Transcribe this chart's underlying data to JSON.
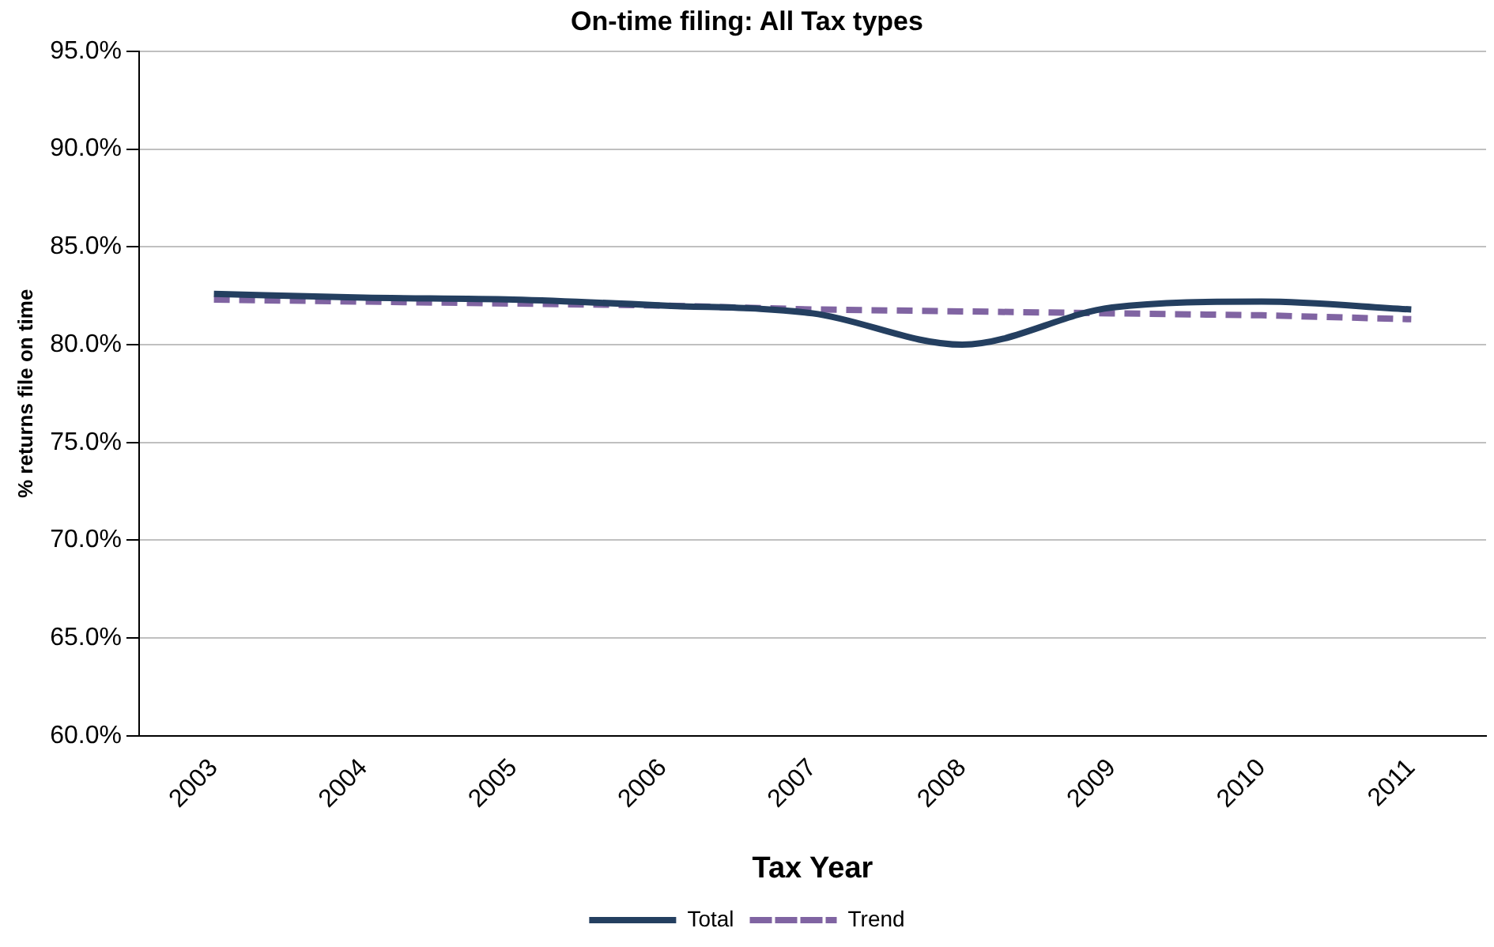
{
  "chart_data": {
    "type": "line",
    "title": "On-time filing: All Tax types",
    "xlabel": "Tax Year",
    "ylabel": "% returns file on time",
    "categories": [
      "2003",
      "2004",
      "2005",
      "2006",
      "2007",
      "2008",
      "2009",
      "2010",
      "2011"
    ],
    "series": [
      {
        "name": "Total",
        "color": "#243f60",
        "values": [
          82.6,
          82.4,
          82.3,
          82.0,
          81.6,
          80.0,
          81.9,
          82.2,
          81.8
        ]
      },
      {
        "name": "Trend",
        "color": "#8064a2",
        "line_style": "dashed",
        "values": [
          82.3,
          82.2,
          82.1,
          82.0,
          81.8,
          81.7,
          81.6,
          81.5,
          81.3
        ]
      }
    ],
    "ylim": [
      60,
      95
    ],
    "yticks": [
      {
        "value": 60,
        "label": "60.0%"
      },
      {
        "value": 65,
        "label": "65.0%"
      },
      {
        "value": 70,
        "label": "70.0%"
      },
      {
        "value": 75,
        "label": "75.0%"
      },
      {
        "value": 80,
        "label": "80.0%"
      },
      {
        "value": 85,
        "label": "85.0%"
      },
      {
        "value": 90,
        "label": "90.0%"
      },
      {
        "value": 95,
        "label": "95.0%"
      }
    ],
    "grid": "y",
    "legend": "bottom",
    "marker": "none"
  }
}
